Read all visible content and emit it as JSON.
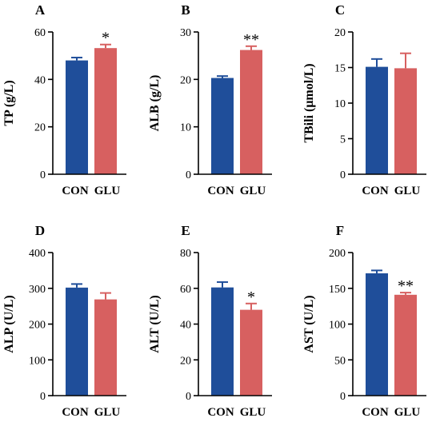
{
  "colors": {
    "CON": "#1f4e9a",
    "GLU": "#d76060",
    "axis": "#000000"
  },
  "chart_data": [
    {
      "type": "bar",
      "panel": "A",
      "ylabel": "TP (g/L)",
      "categories": [
        "CON",
        "GLU"
      ],
      "values": [
        48,
        53.2
      ],
      "errors": [
        1.2,
        1.5
      ],
      "significance": [
        "",
        "*"
      ],
      "ylim": [
        0,
        60
      ],
      "yticks": [
        0,
        20,
        40,
        60
      ],
      "grid": false
    },
    {
      "type": "bar",
      "panel": "B",
      "ylabel": "ALB (g/L)",
      "categories": [
        "CON",
        "GLU"
      ],
      "values": [
        20.3,
        26.2
      ],
      "errors": [
        0.4,
        0.8
      ],
      "significance": [
        "",
        "**"
      ],
      "ylim": [
        0,
        30
      ],
      "yticks": [
        0,
        10,
        20,
        30
      ],
      "grid": false
    },
    {
      "type": "bar",
      "panel": "C",
      "ylabel": "TBili (μmol/L)",
      "categories": [
        "CON",
        "GLU"
      ],
      "values": [
        15.1,
        14.9
      ],
      "errors": [
        1.1,
        2.1
      ],
      "significance": [
        "",
        ""
      ],
      "ylim": [
        0,
        20
      ],
      "yticks": [
        0,
        5,
        10,
        15,
        20
      ],
      "grid": false
    },
    {
      "type": "bar",
      "panel": "D",
      "ylabel": "ALP (U/L)",
      "categories": [
        "CON",
        "GLU"
      ],
      "values": [
        302,
        269
      ],
      "errors": [
        10,
        18
      ],
      "significance": [
        "",
        ""
      ],
      "ylim": [
        0,
        400
      ],
      "yticks": [
        0,
        100,
        200,
        300,
        400
      ],
      "grid": false
    },
    {
      "type": "bar",
      "panel": "E",
      "ylabel": "ALT (U/L)",
      "categories": [
        "CON",
        "GLU"
      ],
      "values": [
        60.5,
        48
      ],
      "errors": [
        3,
        3.5
      ],
      "significance": [
        "",
        "*"
      ],
      "ylim": [
        0,
        80
      ],
      "yticks": [
        0,
        20,
        40,
        60,
        80
      ],
      "grid": false
    },
    {
      "type": "bar",
      "panel": "F",
      "ylabel": "AST (U/L)",
      "categories": [
        "CON",
        "GLU"
      ],
      "values": [
        171,
        141
      ],
      "errors": [
        4,
        3
      ],
      "significance": [
        "",
        "**"
      ],
      "ylim": [
        0,
        200
      ],
      "yticks": [
        0,
        50,
        100,
        150,
        200
      ],
      "grid": false
    }
  ]
}
